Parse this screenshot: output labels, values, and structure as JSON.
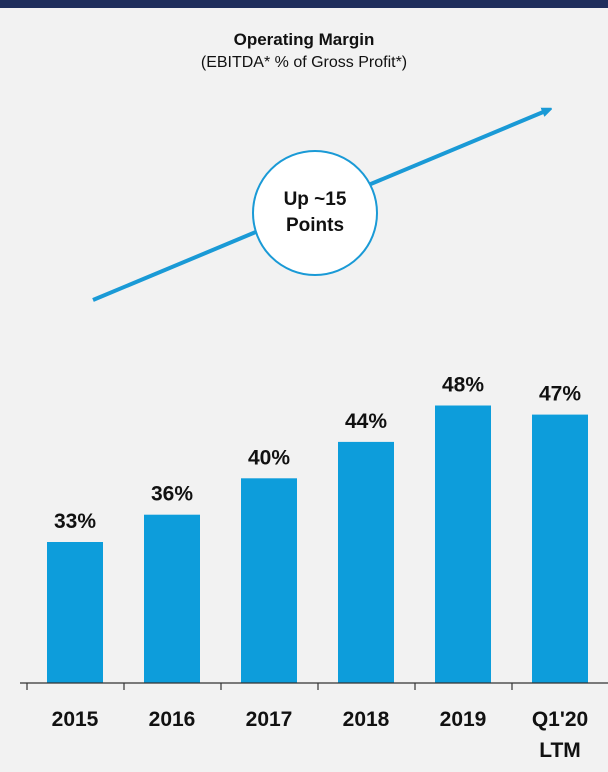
{
  "chart_data": {
    "type": "bar",
    "title": "Operating Margin",
    "subtitle": "(EBITDA* % of Gross Profit*)",
    "categories": [
      [
        "2015"
      ],
      [
        "2016"
      ],
      [
        "2017"
      ],
      [
        "2018"
      ],
      [
        "2019"
      ],
      [
        "Q1'20",
        "LTM"
      ]
    ],
    "values": [
      33,
      36,
      40,
      44,
      48,
      47
    ],
    "value_labels": [
      "33%",
      "36%",
      "40%",
      "44%",
      "48%",
      "47%"
    ],
    "unit": "%",
    "ylim": [
      0,
      50
    ],
    "grid": false,
    "bar_color": "#0d9ddb",
    "annotation": {
      "line1": "Up ~15",
      "line2": "Points",
      "arrow_color": "#1a9ad6"
    }
  },
  "header": {
    "rule_color": "#1f2e5c"
  }
}
